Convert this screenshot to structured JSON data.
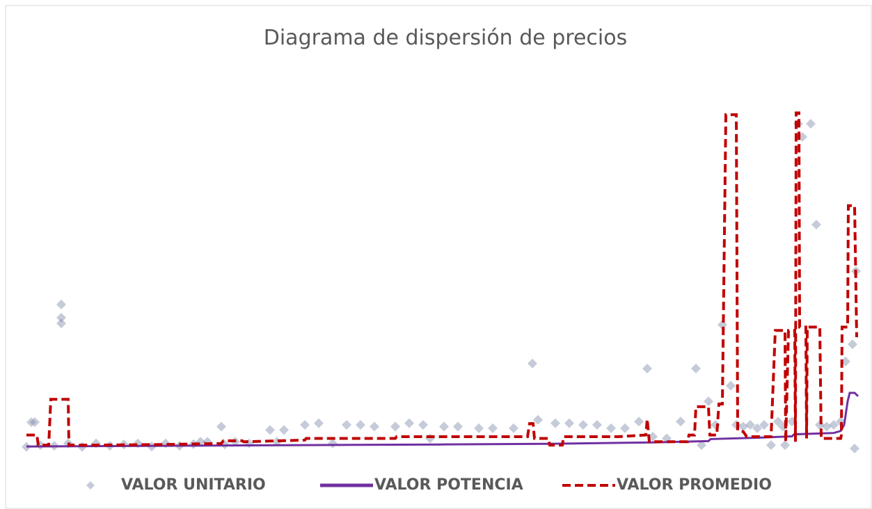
{
  "chart_data": {
    "type": "scatter-line",
    "title": "Diagrama de dispersión de precios",
    "xlim": [
      0,
      120
    ],
    "ylim": [
      0,
      100
    ],
    "series": [
      {
        "name": "VALOR UNITARIO",
        "kind": "scatter",
        "color": "#7f8ca8",
        "x": [
          0.7,
          1.2,
          5,
          5,
          5,
          0,
          2,
          4,
          6,
          8,
          10,
          12,
          14,
          16,
          18,
          20,
          22,
          24,
          26,
          28,
          28.5,
          30,
          32,
          35,
          37,
          40,
          42,
          44,
          46,
          48,
          50,
          53,
          55,
          57,
          60,
          62,
          65,
          67,
          70,
          72.7,
          73.5,
          76,
          78,
          80,
          82,
          84,
          86,
          88,
          89.2,
          90,
          92,
          94,
          96.2,
          97,
          99,
          100,
          101.2,
          102,
          103,
          104,
          105,
          106,
          107,
          108,
          108.7,
          109,
          110,
          110.9,
          111.5,
          112.7,
          113.5,
          114,
          115,
          116,
          117,
          117.7,
          118.7,
          119.2,
          119,
          98,
          58,
          36,
          25
        ],
        "values": [
          7.8,
          7.8,
          42.7,
          38.8,
          37.1,
          0.5,
          1,
          0.8,
          1.5,
          0.5,
          1.5,
          0.8,
          1.2,
          1.5,
          0.6,
          1.5,
          0.8,
          1.3,
          2,
          6.5,
          1.2,
          2,
          1.5,
          5.5,
          5.5,
          7,
          7.5,
          1.5,
          7,
          7,
          6.5,
          6.5,
          7.5,
          7,
          6.5,
          6.5,
          6,
          6,
          6,
          25.2,
          8.5,
          7.5,
          7.5,
          7,
          7,
          6,
          6,
          8,
          23.7,
          3.5,
          3,
          8,
          23.7,
          1,
          7,
          36.7,
          18.6,
          7,
          6.5,
          7,
          6,
          7,
          1,
          8,
          6.5,
          1,
          8,
          96.3,
          92.4,
          96.3,
          66.4,
          7,
          6.5,
          7,
          8,
          25.8,
          30.9,
          52.6,
          0,
          14,
          3,
          2,
          2
        ]
      },
      {
        "name": "VALOR POTENCIA",
        "kind": "line",
        "color": "#7030a0",
        "x": [
          0,
          20,
          40,
          60,
          75,
          90,
          98,
          98.3,
          105,
          110,
          110.3,
          116,
          117,
          117.5,
          118,
          118.3,
          119,
          119.5
        ],
        "values": [
          0.6,
          0.8,
          1,
          1.2,
          1.4,
          1.8,
          2.2,
          2.8,
          3.2,
          3.6,
          4.2,
          4.6,
          5.2,
          7,
          14,
          16.5,
          16.5,
          15.5
        ]
      },
      {
        "name": "VALOR PROMEDIO",
        "kind": "dashed-line",
        "color": "#c00000",
        "x": [
          0,
          1.5,
          1.7,
          3.2,
          3.5,
          6,
          6.1,
          10,
          20,
          28,
          28.3,
          31,
          31.2,
          40,
          40.2,
          53,
          53.2,
          72,
          72.3,
          72.8,
          73,
          75,
          75.2,
          77,
          77.2,
          85,
          89,
          89.2,
          89.5,
          95,
          95.2,
          96,
          96.2,
          98,
          98.2,
          99.2,
          99.5,
          100,
          100.5,
          102,
          102.2,
          103,
          103.5,
          107,
          107.6,
          109,
          109.1,
          109.5,
          110.4,
          110.5,
          110.6,
          111,
          111.1,
          112,
          112.1,
          112.2,
          114,
          114.2,
          117,
          117.1,
          117.2,
          118,
          118.1,
          119,
          119.3
        ],
        "values": [
          4,
          4,
          1,
          1,
          14.6,
          14.6,
          1,
          1,
          1.2,
          1.5,
          2.3,
          2.3,
          2,
          2.5,
          3,
          3,
          3.5,
          3.5,
          7.4,
          7.4,
          3,
          3,
          1,
          1,
          3.5,
          3.5,
          4,
          8.7,
          2,
          2,
          4,
          4,
          12.4,
          12.4,
          4,
          4,
          13.2,
          13.2,
          99,
          99,
          5.4,
          5,
          3.5,
          3.5,
          35,
          35,
          2,
          35,
          35,
          2,
          99.5,
          99.5,
          36,
          36,
          3,
          36,
          36,
          3,
          3,
          4,
          36,
          36,
          72,
          72,
          33
        ]
      }
    ]
  }
}
